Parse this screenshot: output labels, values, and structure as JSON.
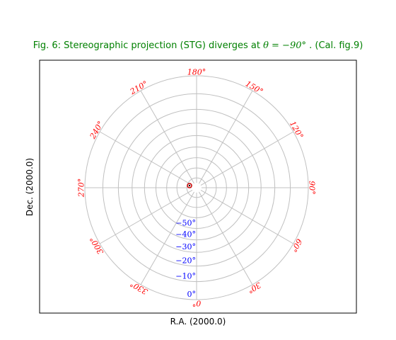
{
  "title": {
    "prefix": "Fig. 6: Stereographic projection (STG) diverges at ",
    "math": "θ = −90°",
    "suffix": " . (Cal. fig.9)"
  },
  "chart_data": {
    "type": "scatter",
    "title": "Fig. 6: Stereographic projection (STG) diverges at θ = −90° . (Cal. fig.9)",
    "xlabel": "R.A. (2000.0)",
    "ylabel": "Dec. (2000.0)",
    "projection": "STG (stereographic), polar view",
    "grid": true,
    "longitude_tick_labels": [
      "0°",
      "30°",
      "60°",
      "90°",
      "120°",
      "150°",
      "180°",
      "210°",
      "240°",
      "270°",
      "300°",
      "330°"
    ],
    "latitude_tick_labels": [
      "0°",
      "−10°",
      "−20°",
      "−30°",
      "−40°",
      "−50°"
    ],
    "latitude_circles_deg": [
      0,
      -10,
      -20,
      -30,
      -40,
      -50,
      -60,
      -70,
      -80
    ],
    "longitude_meridians_deg": [
      0,
      30,
      60,
      90,
      120,
      150,
      180,
      210,
      240,
      270,
      300,
      330
    ],
    "colors": {
      "title": "#008000",
      "longitude_labels": "#ff0000",
      "latitude_labels": "#0000ff",
      "grid": "#c0c0c0",
      "marker": "#cc0000"
    }
  }
}
